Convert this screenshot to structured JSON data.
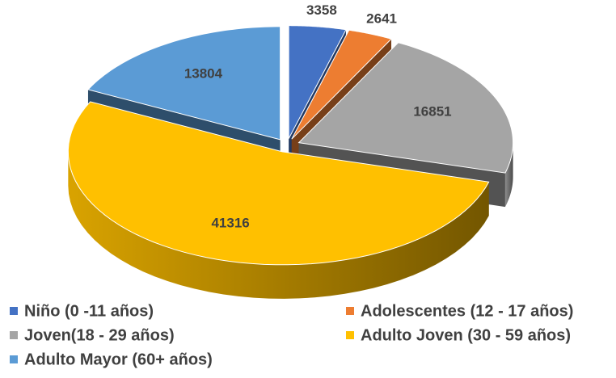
{
  "chart_data": {
    "type": "pie",
    "categories": [
      "Niño (0 -11 años)",
      "Adolescentes (12 - 17 años)",
      "Joven(18 - 29 años)",
      "Adulto Joven (30 - 59 años)",
      "Adulto Mayor (60+ años)"
    ],
    "values": [
      3358,
      2641,
      16851,
      41316,
      13804
    ],
    "colors": [
      "#4472c4",
      "#ed7d31",
      "#a5a5a5",
      "#ffc000",
      "#5b9bd5"
    ]
  }
}
